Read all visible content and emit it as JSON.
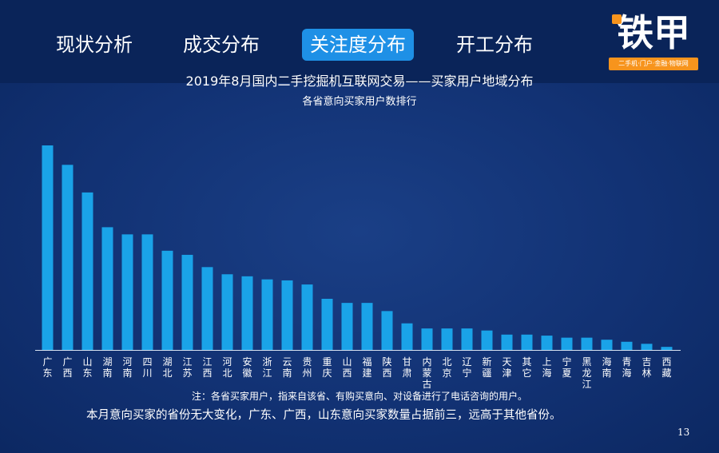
{
  "tabs": [
    {
      "label": "现状分析",
      "active": false
    },
    {
      "label": "成交分布",
      "active": false
    },
    {
      "label": "关注度分布",
      "active": true
    },
    {
      "label": "开工分布",
      "active": false
    }
  ],
  "logo": {
    "text": "铁甲",
    "tagline": "二手机·门户·金融·物联网",
    "accent_color": "#f7941d"
  },
  "colors": {
    "background": "#0f2e6e",
    "bar": "#1aa3e8",
    "active_tab": "#1e90e6"
  },
  "chart_data": {
    "type": "bar",
    "title": "2019年8月国内二手挖掘机互联网交易——买家用户地域分布",
    "subtitle": "各省意向买家用户数排行",
    "categories": [
      "广东",
      "广西",
      "山东",
      "湖南",
      "河南",
      "四川",
      "湖北",
      "江苏",
      "江西",
      "河北",
      "安徽",
      "浙江",
      "云南",
      "贵州",
      "重庆",
      "山西",
      "福建",
      "陕西",
      "甘肃",
      "内蒙古",
      "北京",
      "辽宁",
      "新疆",
      "天津",
      "其它",
      "上海",
      "宁夏",
      "黑龙江",
      "海南",
      "青海",
      "吉林",
      "西藏"
    ],
    "values": [
      100,
      90.5,
      77,
      60,
      56.5,
      56.5,
      48.5,
      46.5,
      40.5,
      37,
      36,
      34.5,
      34,
      32,
      25,
      23,
      23,
      19,
      13,
      10.5,
      10.5,
      10.5,
      9.5,
      7.5,
      7.5,
      7,
      6,
      6,
      5,
      4,
      3,
      1.5
    ],
    "ylim": [
      0,
      100
    ],
    "grid": false,
    "legend": "none",
    "xlabel": "",
    "ylabel": ""
  },
  "note": "注：各省买家用户，指来自该省、有购买意向、对设备进行了电话咨询的用户。",
  "summary": "本月意向买家的省份无大变化，广东、广西，山东意向买家数量占据前三，远高于其他省份。",
  "page_number": "13"
}
